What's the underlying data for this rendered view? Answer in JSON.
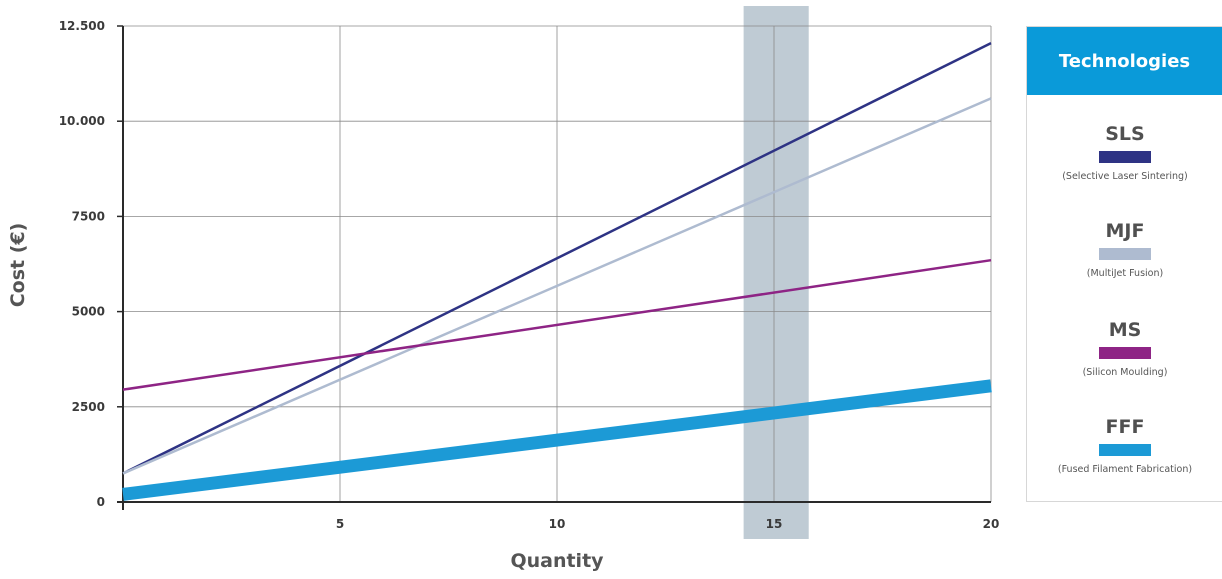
{
  "chart_data": {
    "type": "line",
    "xlabel": "Quantity",
    "ylabel": "Cost (€)",
    "xlim": [
      0,
      20
    ],
    "ylim": [
      0,
      12500
    ],
    "x_ticks": [
      {
        "value": 5,
        "label": "5"
      },
      {
        "value": 10,
        "label": "10"
      },
      {
        "value": 15,
        "label": "15"
      },
      {
        "value": 20,
        "label": "20"
      }
    ],
    "y_ticks": [
      {
        "value": 0,
        "label": "0"
      },
      {
        "value": 2500,
        "label": "2500"
      },
      {
        "value": 5000,
        "label": "5000"
      },
      {
        "value": 7500,
        "label": "7500"
      },
      {
        "value": 10000,
        "label": "10.000"
      },
      {
        "value": 12500,
        "label": "12.500"
      }
    ],
    "grid": true,
    "highlight_band": {
      "x_range": [
        14.3,
        15.8
      ],
      "color": "#bfcbd4"
    },
    "series": [
      {
        "name": "SLS",
        "x": [
          0,
          20
        ],
        "y": [
          750,
          12050
        ],
        "color": "#2e3384"
      },
      {
        "name": "MJF",
        "x": [
          0,
          20
        ],
        "y": [
          750,
          10600
        ],
        "color": "#aebbd0"
      },
      {
        "name": "MS",
        "x": [
          0,
          20
        ],
        "y": [
          2950,
          6350
        ],
        "color": "#8e2485"
      },
      {
        "name": "FFF",
        "x": [
          0,
          20
        ],
        "y": [
          200,
          3050
        ],
        "color": "#1c9ad6"
      }
    ],
    "legend": {
      "title": "Technologies",
      "placement": "right",
      "header_color": "#0a9ad9",
      "entries": [
        {
          "abbr": "SLS",
          "full": "(Selective Laser Sintering)",
          "color": "#2e3384"
        },
        {
          "abbr": "MJF",
          "full": "(MultiJet Fusion)",
          "color": "#aebbd0"
        },
        {
          "abbr": "MS",
          "full": "(Silicon Moulding)",
          "color": "#8e2485"
        },
        {
          "abbr": "FFF",
          "full": "(Fused Filament Fabrication)",
          "color": "#1c9ad6"
        }
      ]
    }
  }
}
